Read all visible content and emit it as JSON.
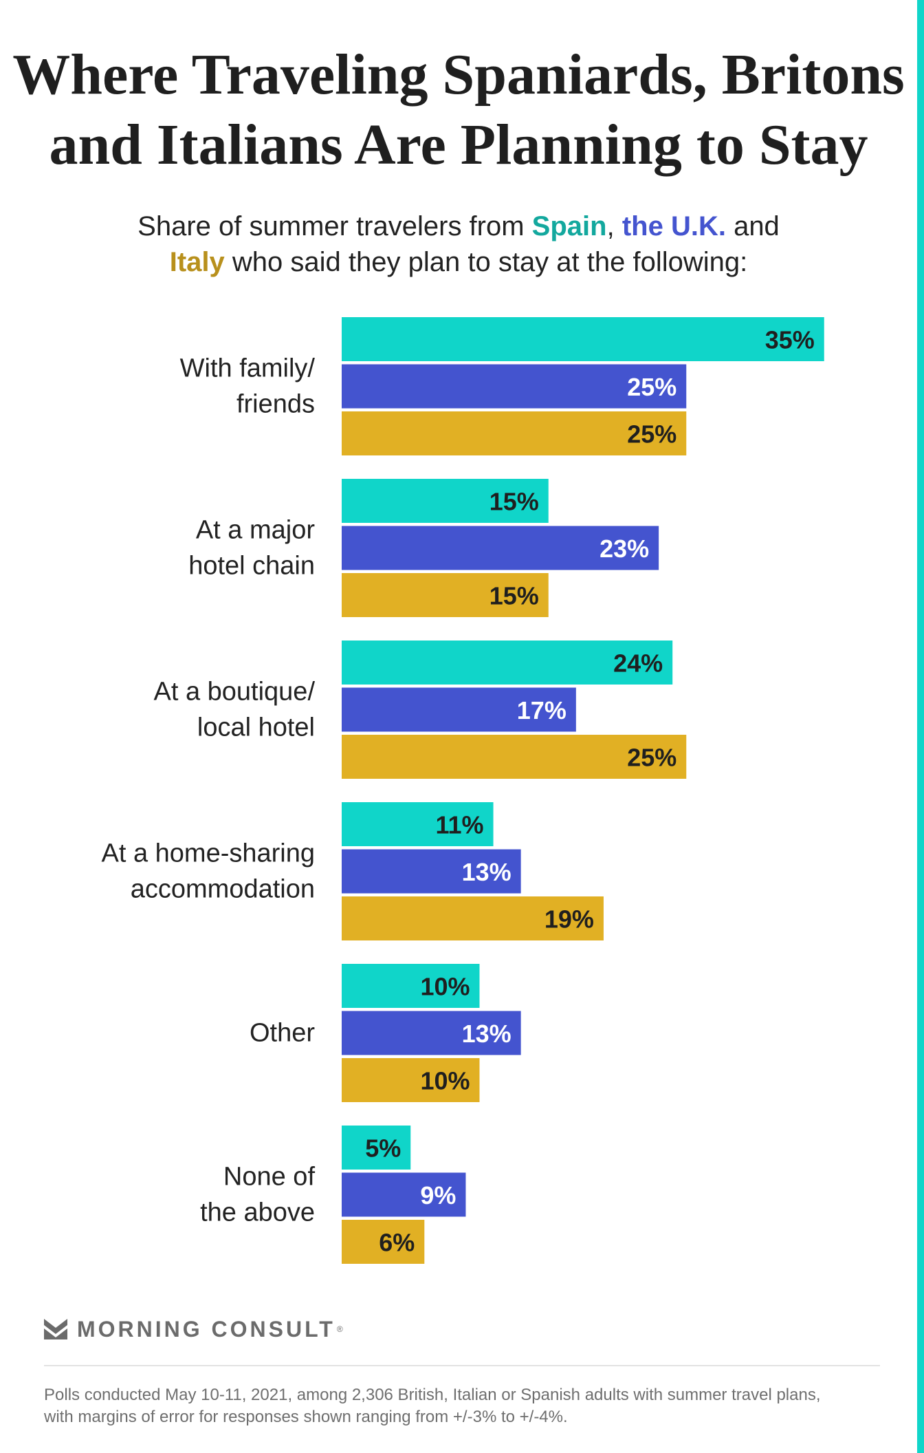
{
  "title_lines": [
    "Where Traveling Spaniards, Britons",
    "and Italians Are Planning to Stay"
  ],
  "subtitle": {
    "prefix": "Share of summer travelers from ",
    "spain": "Spain",
    "sep": ",",
    "uk": "the U.K.",
    "and": " and",
    "italy": "Italy",
    "suffix": " who said they plan to stay at the following:"
  },
  "colors": {
    "spain": "#10d5c9",
    "uk": "#4454cf",
    "italy": "#e1b024",
    "spain_text": "#13a89e",
    "italy_text": "#b8901c",
    "accent": "#10d5c9"
  },
  "chart_data": {
    "type": "bar",
    "orientation": "horizontal",
    "unit": "%",
    "xlim": [
      0,
      35
    ],
    "categories": [
      [
        "With family/",
        "friends"
      ],
      [
        "At a major",
        "hotel chain"
      ],
      [
        "At a boutique/",
        "local hotel"
      ],
      [
        "At a home-sharing",
        "accommodation"
      ],
      [
        "Other"
      ],
      [
        "None of",
        "the above"
      ]
    ],
    "series": [
      {
        "name": "Spain",
        "values": [
          35,
          15,
          24,
          11,
          10,
          5
        ]
      },
      {
        "name": "the U.K.",
        "values": [
          25,
          23,
          17,
          13,
          13,
          9
        ]
      },
      {
        "name": "Italy",
        "values": [
          25,
          15,
          25,
          19,
          10,
          6
        ]
      }
    ],
    "data_labels": [
      [
        "35%",
        "15%",
        "24%",
        "11%",
        "10%",
        "5%"
      ],
      [
        "25%",
        "23%",
        "17%",
        "13%",
        "13%",
        "9%"
      ],
      [
        "25%",
        "15%",
        "25%",
        "19%",
        "10%",
        "6%"
      ]
    ],
    "label_colors": [
      "#1f1f1f",
      "#ffffff",
      "#1f1f1f"
    ],
    "grid": false,
    "legend": "in subtitle"
  },
  "brand": {
    "name": "MORNING CONSULT",
    "reg": "®",
    "logo": "morning-consult-logo-icon"
  },
  "footnote": [
    "Polls conducted May 10-11, 2021, among 2,306 British, Italian or Spanish adults with summer travel plans,",
    "with margins of error for responses shown ranging from +/-3% to +/-4%."
  ]
}
